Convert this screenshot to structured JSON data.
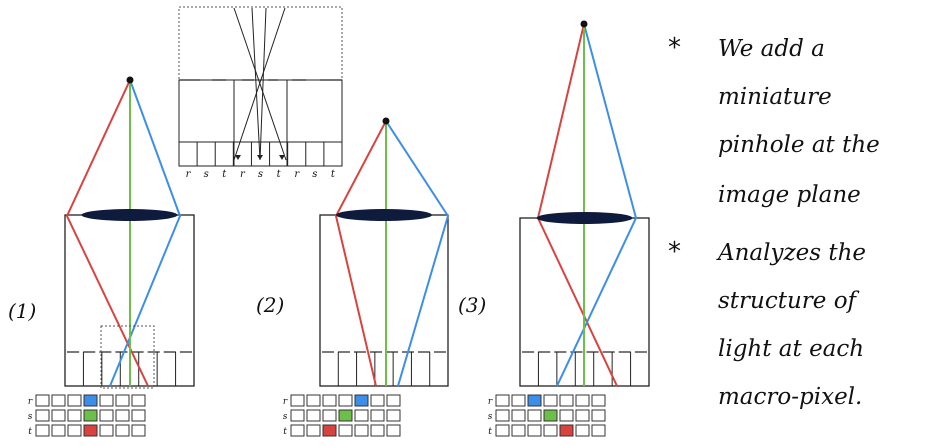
{
  "colors": {
    "red": "#d9433f",
    "blue": "#3d8ee8",
    "green": "#6cc04a",
    "lens": "#0f1b3d",
    "ink": "#111111"
  },
  "inset": {
    "pixel_labels": [
      "r",
      "s",
      "t",
      "r",
      "s",
      "t",
      "r",
      "s",
      "t"
    ]
  },
  "panels": [
    {
      "label": "(1)",
      "row_labels": [
        "r",
        "s",
        "t"
      ],
      "highlights": {
        "r": {
          "index": 3,
          "color": "blue"
        },
        "s": {
          "index": 3,
          "color": "green"
        },
        "t": {
          "index": 3,
          "color": "red"
        }
      }
    },
    {
      "label": "(2)",
      "row_labels": [
        "r",
        "s",
        "t"
      ],
      "highlights": {
        "r": {
          "index": 4,
          "color": "blue"
        },
        "s": {
          "index": 3,
          "color": "green"
        },
        "t": {
          "index": 2,
          "color": "red"
        }
      }
    },
    {
      "label": "(3)",
      "row_labels": [
        "r",
        "s",
        "t"
      ],
      "highlights": {
        "r": {
          "index": 2,
          "color": "blue"
        },
        "s": {
          "index": 3,
          "color": "green"
        },
        "t": {
          "index": 4,
          "color": "red"
        }
      }
    }
  ],
  "notes": [
    {
      "bullet": "*",
      "lines": [
        "We add a",
        "miniature",
        "pinhole at the",
        "image plane"
      ]
    },
    {
      "bullet": "*",
      "lines": [
        "Analyzes the",
        "structure of",
        "light at each",
        "macro-pixel."
      ]
    }
  ]
}
